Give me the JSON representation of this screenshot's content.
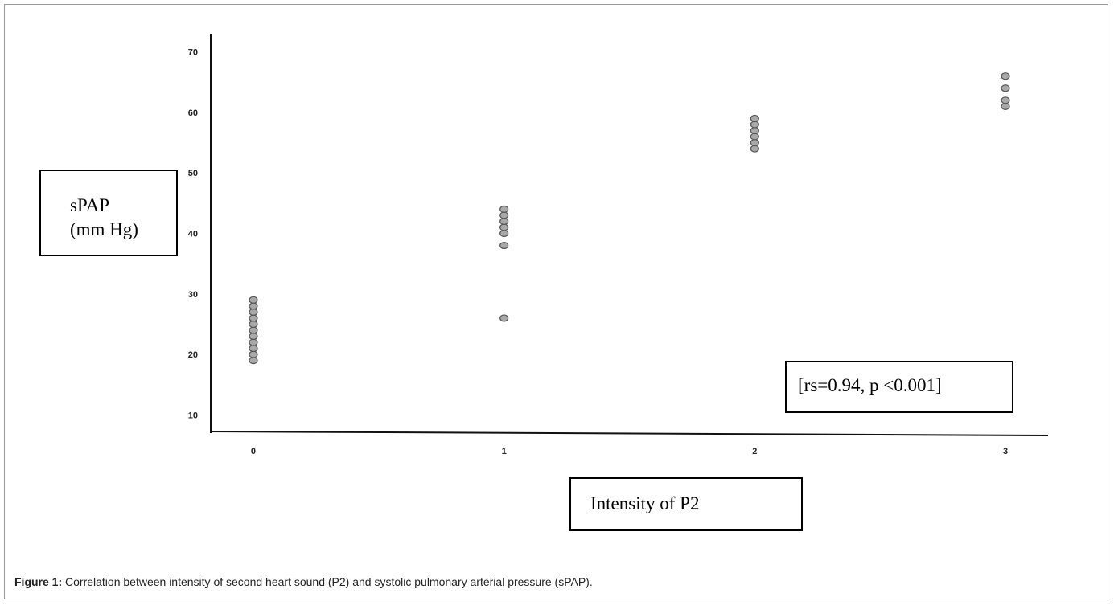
{
  "chart_data": {
    "type": "scatter",
    "xlabel": "Intensity of P2",
    "ylabel_line1": "sPAP",
    "ylabel_line2": "(mm Hg)",
    "annotation": "[rs=0.94, p <0.001]",
    "x_ticks": [
      0,
      1,
      2,
      3
    ],
    "y_ticks": [
      10,
      20,
      30,
      40,
      50,
      60,
      70
    ],
    "xlim": [
      -0.17,
      3.17
    ],
    "ylim": [
      7,
      73
    ],
    "grid": false,
    "series": [
      {
        "points": [
          {
            "x": 0,
            "y": 19
          },
          {
            "x": 0,
            "y": 20
          },
          {
            "x": 0,
            "y": 21
          },
          {
            "x": 0,
            "y": 22
          },
          {
            "x": 0,
            "y": 23
          },
          {
            "x": 0,
            "y": 24
          },
          {
            "x": 0,
            "y": 25
          },
          {
            "x": 0,
            "y": 26
          },
          {
            "x": 0,
            "y": 27
          },
          {
            "x": 0,
            "y": 28
          },
          {
            "x": 0,
            "y": 29
          },
          {
            "x": 1,
            "y": 26
          },
          {
            "x": 1,
            "y": 38
          },
          {
            "x": 1,
            "y": 40
          },
          {
            "x": 1,
            "y": 41
          },
          {
            "x": 1,
            "y": 42
          },
          {
            "x": 1,
            "y": 43
          },
          {
            "x": 1,
            "y": 44
          },
          {
            "x": 2,
            "y": 54
          },
          {
            "x": 2,
            "y": 55
          },
          {
            "x": 2,
            "y": 56
          },
          {
            "x": 2,
            "y": 57
          },
          {
            "x": 2,
            "y": 58
          },
          {
            "x": 2,
            "y": 59
          },
          {
            "x": 3,
            "y": 61
          },
          {
            "x": 3,
            "y": 62
          },
          {
            "x": 3,
            "y": 64
          },
          {
            "x": 3,
            "y": 66
          }
        ]
      }
    ],
    "colors": {
      "point_fill": "#a9a9a9",
      "point_stroke": "#555555",
      "axis": "#111111"
    }
  },
  "caption": {
    "label": "Figure 1:",
    "text": " Correlation between intensity of second heart sound (P2) and systolic pulmonary arterial pressure (sPAP)."
  }
}
